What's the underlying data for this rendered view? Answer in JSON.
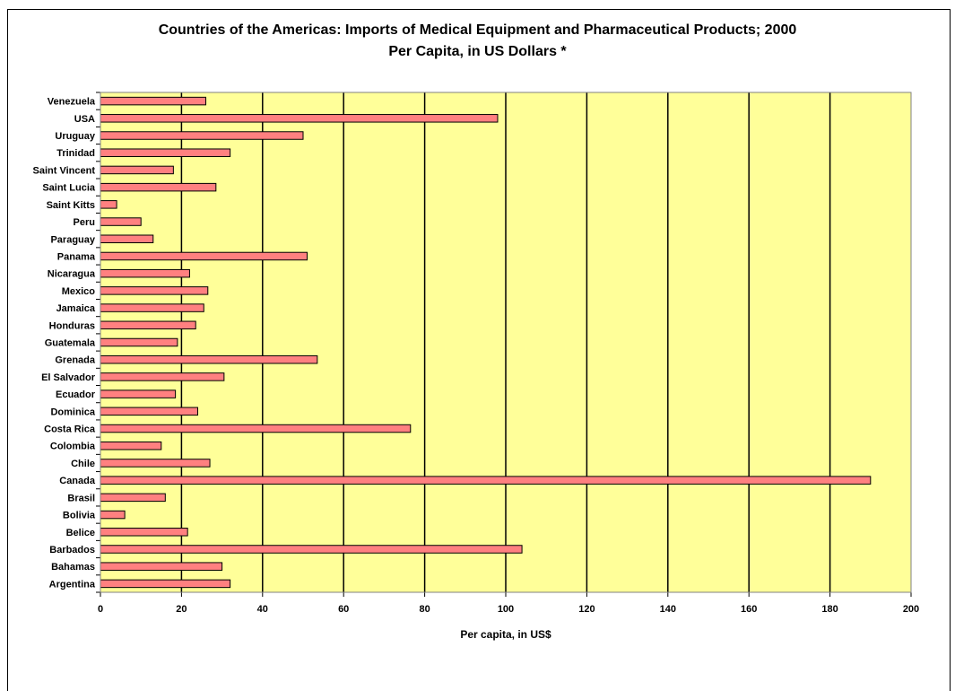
{
  "chart_data": {
    "type": "bar",
    "orientation": "horizontal",
    "title": "Countries of the Americas: Imports of Medical Equipment and Pharmaceutical Products; 2000",
    "subtitle": "Per Capita, in US Dollars *",
    "xlabel": "Per capita, in US$",
    "ylabel": "",
    "xlim": [
      0,
      200
    ],
    "xticks": [
      0,
      20,
      40,
      60,
      80,
      100,
      120,
      140,
      160,
      180,
      200
    ],
    "grid": true,
    "colors": {
      "plot_bg": "#ffff99",
      "bar_fill": "#ff8080",
      "bar_stroke": "#000000"
    },
    "categories": [
      "Venezuela",
      "USA",
      "Uruguay",
      "Trinidad",
      "Saint Vincent",
      "Saint Lucia",
      "Saint Kitts",
      "Peru",
      "Paraguay",
      "Panama",
      "Nicaragua",
      "Mexico",
      "Jamaica",
      "Honduras",
      "Guatemala",
      "Grenada",
      "El Salvador",
      "Ecuador",
      "Dominica",
      "Costa Rica",
      "Colombia",
      "Chile",
      "Canada",
      "Brasil",
      "Bolivia",
      "Belice",
      "Barbados",
      "Bahamas",
      "Argentina"
    ],
    "values": [
      26,
      98,
      50,
      32,
      18,
      28.5,
      4,
      10,
      13,
      51,
      22,
      26.5,
      25.5,
      23.5,
      19,
      53.5,
      30.5,
      18.5,
      24,
      76.5,
      15,
      27,
      190,
      16,
      6,
      21.5,
      104,
      30,
      32
    ]
  }
}
